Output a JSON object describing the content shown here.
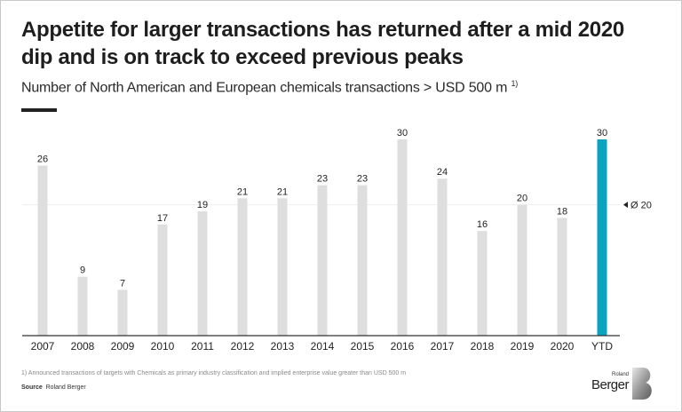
{
  "title": "Appetite for larger transactions has returned after a mid 2020 dip and is on track to exceed previous peaks",
  "subtitle": "Number of North American and European chemicals transactions > USD 500 m",
  "subtitle_footnote_mark": "1)",
  "footnote": "1) Announced transactions of targets with Chemicals as primary industry classification and implied enterprise value greater than USD 500 m",
  "source_label": "Source",
  "source_value": "Roland Berger",
  "logo": {
    "top": "Roland",
    "bottom": "Berger"
  },
  "colors": {
    "bar": "#dedede",
    "highlight": "#0aa3c2",
    "axis": "#333333",
    "text": "#222222"
  },
  "chart_data": {
    "type": "bar",
    "title": "Number of North American and European chemicals transactions > USD 500 m",
    "xlabel": "",
    "ylabel": "",
    "categories": [
      "2007",
      "2008",
      "2009",
      "2010",
      "2011",
      "2012",
      "2013",
      "2014",
      "2015",
      "2016",
      "2017",
      "2018",
      "2019",
      "2020",
      "YTD"
    ],
    "values": [
      26,
      9,
      7,
      17,
      19,
      21,
      21,
      23,
      23,
      30,
      24,
      16,
      20,
      18,
      30
    ],
    "highlight_category": "YTD",
    "ylim": [
      0,
      30
    ],
    "grid": false,
    "reference_line": {
      "value": 20,
      "label": "Ø 20",
      "marker": "left-pointing triangle"
    },
    "data_labels": true
  }
}
